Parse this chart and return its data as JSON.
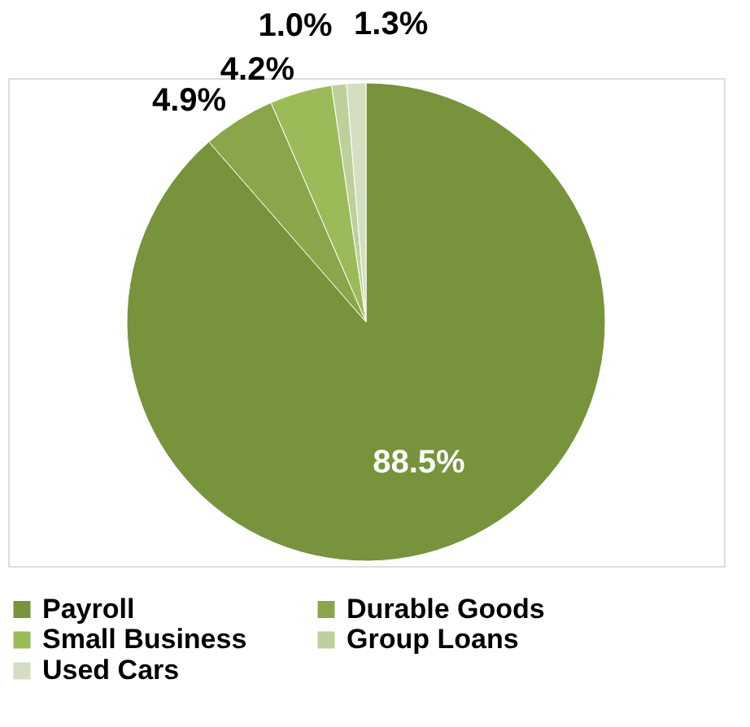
{
  "chart_data": {
    "type": "pie",
    "categories": [
      "Payroll",
      "Durable Goods",
      "Small Business",
      "Group Loans",
      "Used Cars"
    ],
    "values": [
      88.5,
      4.9,
      4.2,
      1.0,
      1.3
    ],
    "value_labels": [
      "88.5%",
      "4.9%",
      "4.2%",
      "1.0%",
      "1.3%"
    ],
    "colors": [
      "#77933c",
      "#8aa64a",
      "#9bbb59",
      "#bdd09b",
      "#d3dfc0"
    ],
    "legend": "bottom"
  }
}
